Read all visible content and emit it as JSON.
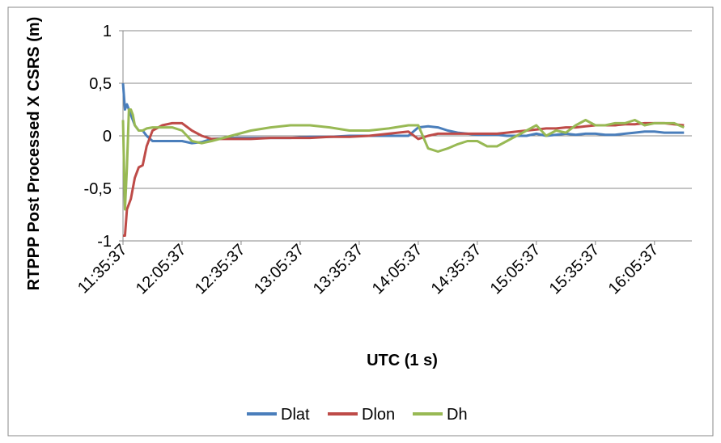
{
  "chart_data": {
    "type": "line",
    "y_label": "RTPPP Post Processed X CSRS (m)",
    "x_label": "UTC (1 s)",
    "x": [
      "11:35:37",
      "11:36:37",
      "11:37:37",
      "11:38:37",
      "11:39:37",
      "11:40:37",
      "11:41:37",
      "11:43:37",
      "11:45:37",
      "11:47:37",
      "11:50:37",
      "11:55:37",
      "12:00:37",
      "12:05:37",
      "12:10:37",
      "12:15:37",
      "12:20:37",
      "12:30:37",
      "12:40:37",
      "12:50:37",
      "13:00:37",
      "13:10:37",
      "13:20:37",
      "13:30:37",
      "13:40:37",
      "13:50:37",
      "14:00:37",
      "14:05:37",
      "14:10:37",
      "14:15:37",
      "14:20:37",
      "14:25:37",
      "14:30:37",
      "14:35:37",
      "14:40:37",
      "14:45:37",
      "14:50:37",
      "14:55:37",
      "15:00:37",
      "15:05:37",
      "15:10:37",
      "15:15:37",
      "15:20:37",
      "15:25:37",
      "15:30:37",
      "15:35:37",
      "15:40:37",
      "15:45:37",
      "15:50:37",
      "15:55:37",
      "16:00:37",
      "16:05:37",
      "16:10:37",
      "16:15:37",
      "16:20:37"
    ],
    "series": [
      {
        "name": "Dlat",
        "color": "#4a7ebb",
        "values": [
          0.5,
          0.25,
          0.3,
          0.25,
          0.2,
          0.15,
          0.1,
          0.05,
          0.05,
          0.0,
          -0.05,
          -0.05,
          -0.05,
          -0.05,
          -0.07,
          -0.06,
          -0.03,
          -0.02,
          -0.02,
          -0.02,
          -0.02,
          -0.01,
          -0.01,
          0.0,
          0.0,
          0.0,
          0.0,
          0.08,
          0.09,
          0.08,
          0.05,
          0.03,
          0.02,
          0.01,
          0.01,
          0.01,
          0.0,
          0.0,
          0.0,
          0.02,
          0.0,
          0.01,
          0.02,
          0.01,
          0.02,
          0.02,
          0.01,
          0.01,
          0.02,
          0.03,
          0.04,
          0.04,
          0.03,
          0.03,
          0.03
        ]
      },
      {
        "name": "Dlon",
        "color": "#be4b48",
        "values": [
          -0.95,
          -0.95,
          -0.7,
          -0.65,
          -0.6,
          -0.5,
          -0.4,
          -0.3,
          -0.28,
          -0.1,
          0.05,
          0.1,
          0.12,
          0.12,
          0.05,
          0.0,
          -0.03,
          -0.03,
          -0.03,
          -0.02,
          -0.02,
          -0.02,
          -0.01,
          -0.01,
          0.0,
          0.02,
          0.04,
          -0.03,
          0.0,
          0.02,
          0.02,
          0.02,
          0.02,
          0.02,
          0.02,
          0.02,
          0.03,
          0.04,
          0.05,
          0.06,
          0.07,
          0.07,
          0.08,
          0.08,
          0.09,
          0.1,
          0.1,
          0.1,
          0.11,
          0.11,
          0.12,
          0.12,
          0.12,
          0.11,
          0.1
        ]
      },
      {
        "name": "Dh",
        "color": "#98b954",
        "values": [
          0.15,
          -0.7,
          -0.3,
          0.25,
          0.25,
          0.2,
          0.1,
          0.05,
          0.05,
          0.07,
          0.08,
          0.08,
          0.08,
          0.05,
          -0.05,
          -0.07,
          -0.05,
          0.0,
          0.05,
          0.08,
          0.1,
          0.1,
          0.08,
          0.05,
          0.05,
          0.07,
          0.1,
          0.1,
          -0.12,
          -0.15,
          -0.12,
          -0.08,
          -0.05,
          -0.05,
          -0.1,
          -0.1,
          -0.05,
          0.0,
          0.05,
          0.1,
          0.0,
          0.05,
          0.03,
          0.1,
          0.15,
          0.1,
          0.1,
          0.12,
          0.12,
          0.15,
          0.1,
          0.12,
          0.12,
          0.12,
          0.08
        ]
      }
    ],
    "xlim": [
      "11:35:37",
      "16:24:37"
    ],
    "xticks": [
      "11:35:37",
      "12:05:37",
      "12:35:37",
      "13:05:37",
      "13:35:37",
      "14:05:37",
      "14:35:37",
      "15:05:37",
      "15:35:37",
      "16:05:37"
    ],
    "ylim": [
      -1,
      1
    ],
    "yticks": [
      1,
      {
        "value": 0.5,
        "label": "0,5"
      },
      0,
      {
        "value": -0.5,
        "label": "-0,5"
      },
      -1
    ],
    "grid": true,
    "legend": "bottom"
  }
}
